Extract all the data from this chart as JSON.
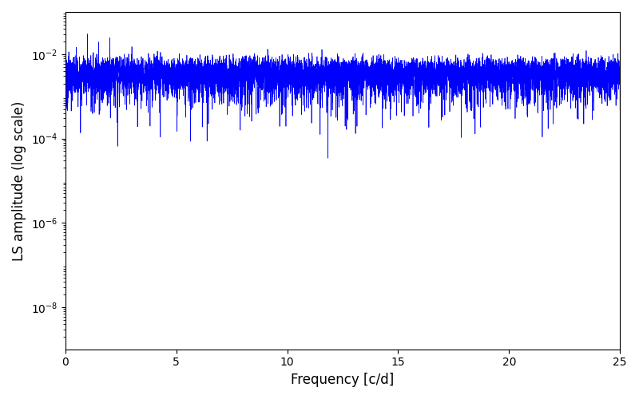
{
  "xlabel": "Frequency [c/d]",
  "ylabel": "LS amplitude (log scale)",
  "line_color": "#0000ff",
  "xlim": [
    0,
    25
  ],
  "ylim": [
    1e-09,
    0.1
  ],
  "freq_max": 25.0,
  "n_freq": 8000,
  "seed": 12345,
  "figsize": [
    8.0,
    5.0
  ],
  "dpi": 100,
  "linewidth": 0.5
}
